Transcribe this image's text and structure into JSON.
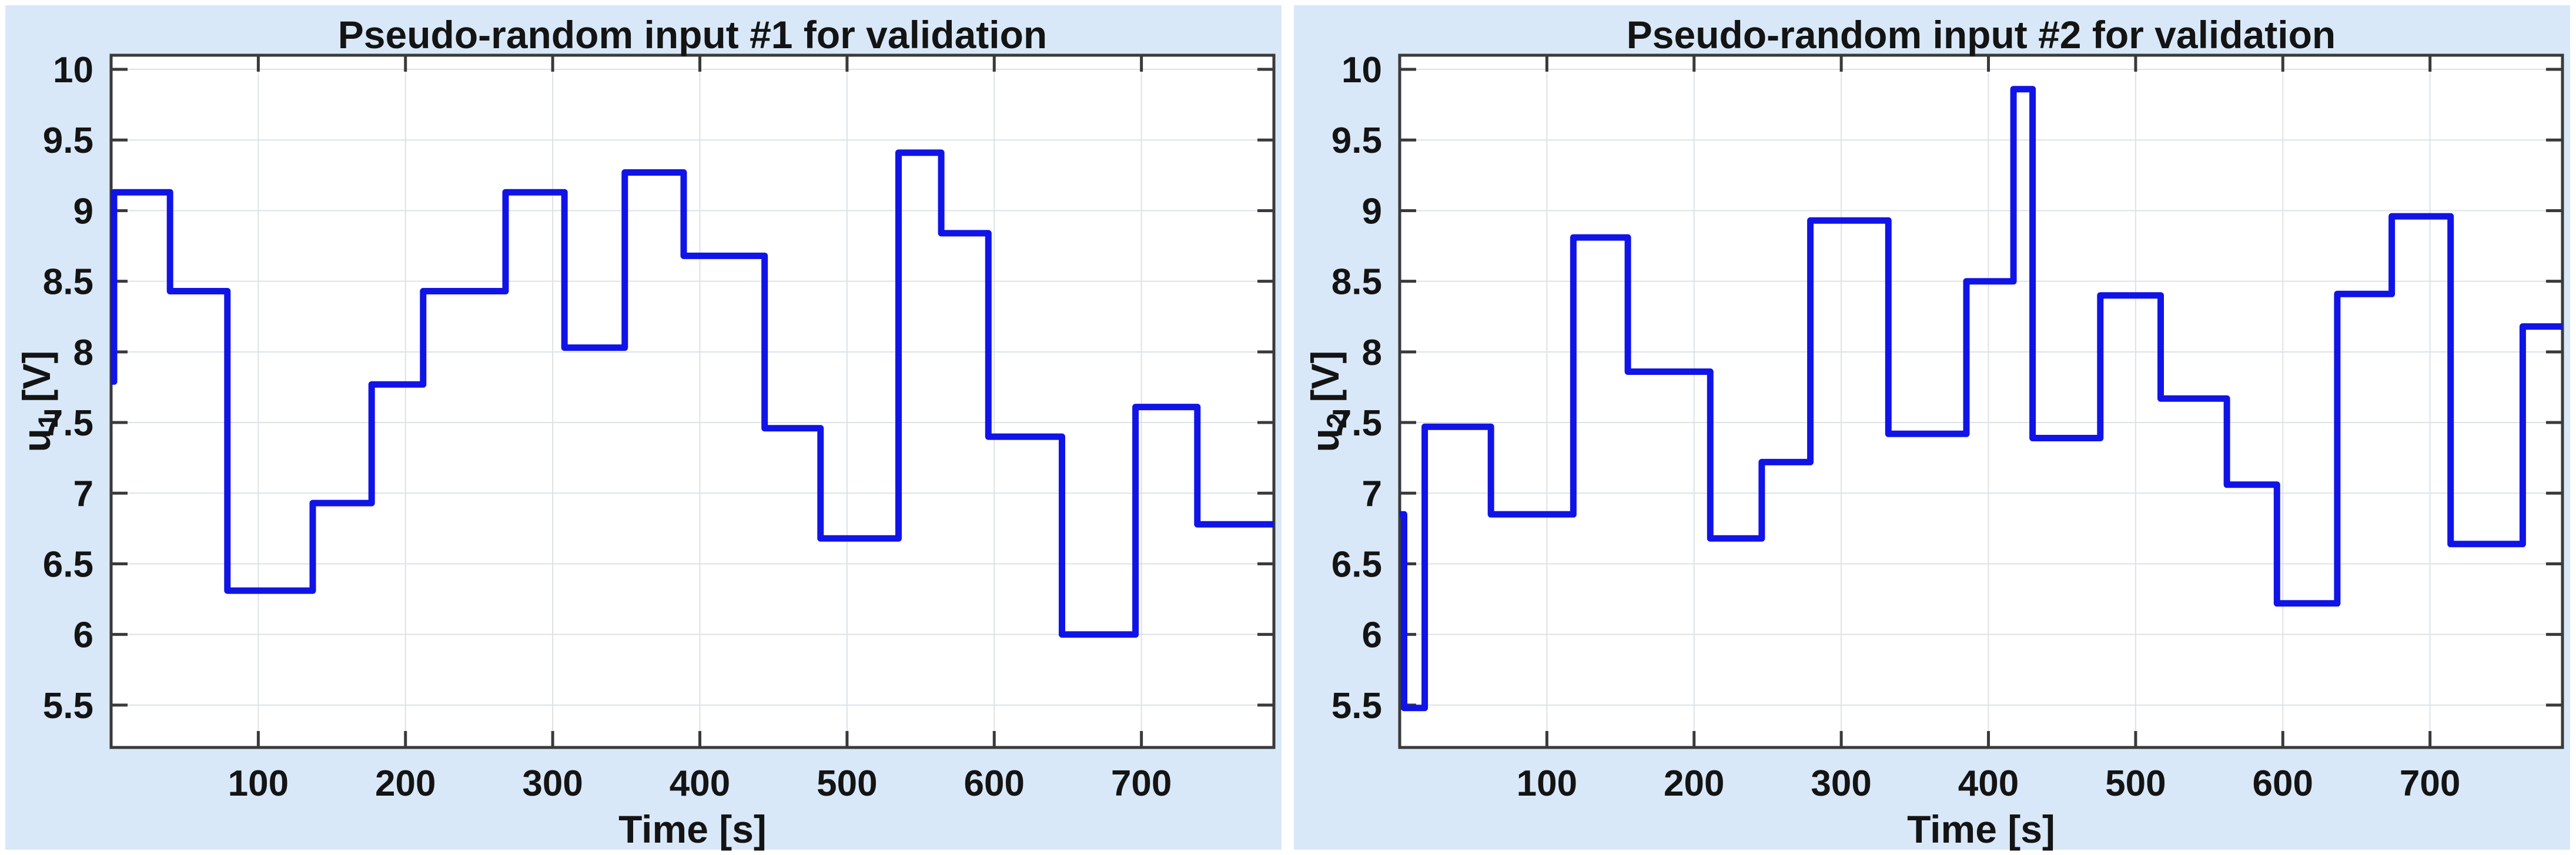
{
  "colors": {
    "panel_background": "#d8e8f8",
    "plot_background": "#ffffff",
    "grid": "#dde2e7",
    "axis": "#3a3a3a",
    "text": "#141414",
    "signal_line": "#1114e6"
  },
  "chart_data": [
    {
      "type": "line",
      "line_style": "stairs",
      "title": "Pseudo-random input #1 for validation",
      "xlabel": "Time [s]",
      "ylabel": {
        "base": "u",
        "sub": "1",
        "unit": " [V]"
      },
      "xlim": [
        0,
        790
      ],
      "ylim": [
        5.2,
        10.1
      ],
      "x_ticks": [
        100,
        200,
        300,
        400,
        500,
        600,
        700
      ],
      "y_ticks": [
        5.5,
        6,
        6.5,
        7,
        7.5,
        8,
        8.5,
        9,
        9.5,
        10
      ],
      "grid": true,
      "legend": null,
      "x_end": 790,
      "steps": [
        [
          0,
          7.79
        ],
        [
          2,
          9.13
        ],
        [
          40,
          8.43
        ],
        [
          79,
          6.31
        ],
        [
          137,
          6.93
        ],
        [
          177,
          7.77
        ],
        [
          212,
          8.43
        ],
        [
          268,
          9.13
        ],
        [
          308,
          8.03
        ],
        [
          349,
          9.27
        ],
        [
          389,
          8.68
        ],
        [
          444,
          7.46
        ],
        [
          482,
          6.68
        ],
        [
          535,
          9.41
        ],
        [
          564,
          8.84
        ],
        [
          596,
          7.4
        ],
        [
          646,
          6.0
        ],
        [
          696,
          7.61
        ],
        [
          738,
          6.78
        ]
      ]
    },
    {
      "type": "line",
      "line_style": "stairs",
      "title": "Pseudo-random input #2 for validation",
      "xlabel": "Time [s]",
      "ylabel": {
        "base": "u",
        "sub": "2",
        "unit": " [V]"
      },
      "xlim": [
        0,
        790
      ],
      "ylim": [
        5.2,
        10.1
      ],
      "x_ticks": [
        100,
        200,
        300,
        400,
        500,
        600,
        700
      ],
      "y_ticks": [
        5.5,
        6,
        6.5,
        7,
        7.5,
        8,
        8.5,
        9,
        9.5,
        10
      ],
      "grid": true,
      "legend": null,
      "x_end": 790,
      "steps": [
        [
          0,
          6.85
        ],
        [
          3,
          5.48
        ],
        [
          17,
          7.47
        ],
        [
          62,
          6.85
        ],
        [
          118,
          8.81
        ],
        [
          155,
          7.86
        ],
        [
          211,
          6.68
        ],
        [
          246,
          7.22
        ],
        [
          279,
          8.93
        ],
        [
          332,
          7.42
        ],
        [
          385,
          8.5
        ],
        [
          417,
          9.86
        ],
        [
          430,
          7.39
        ],
        [
          476,
          8.4
        ],
        [
          517,
          7.67
        ],
        [
          562,
          7.06
        ],
        [
          596,
          6.22
        ],
        [
          637,
          8.41
        ],
        [
          674,
          8.96
        ],
        [
          714,
          6.64
        ],
        [
          763,
          8.18
        ]
      ]
    }
  ]
}
